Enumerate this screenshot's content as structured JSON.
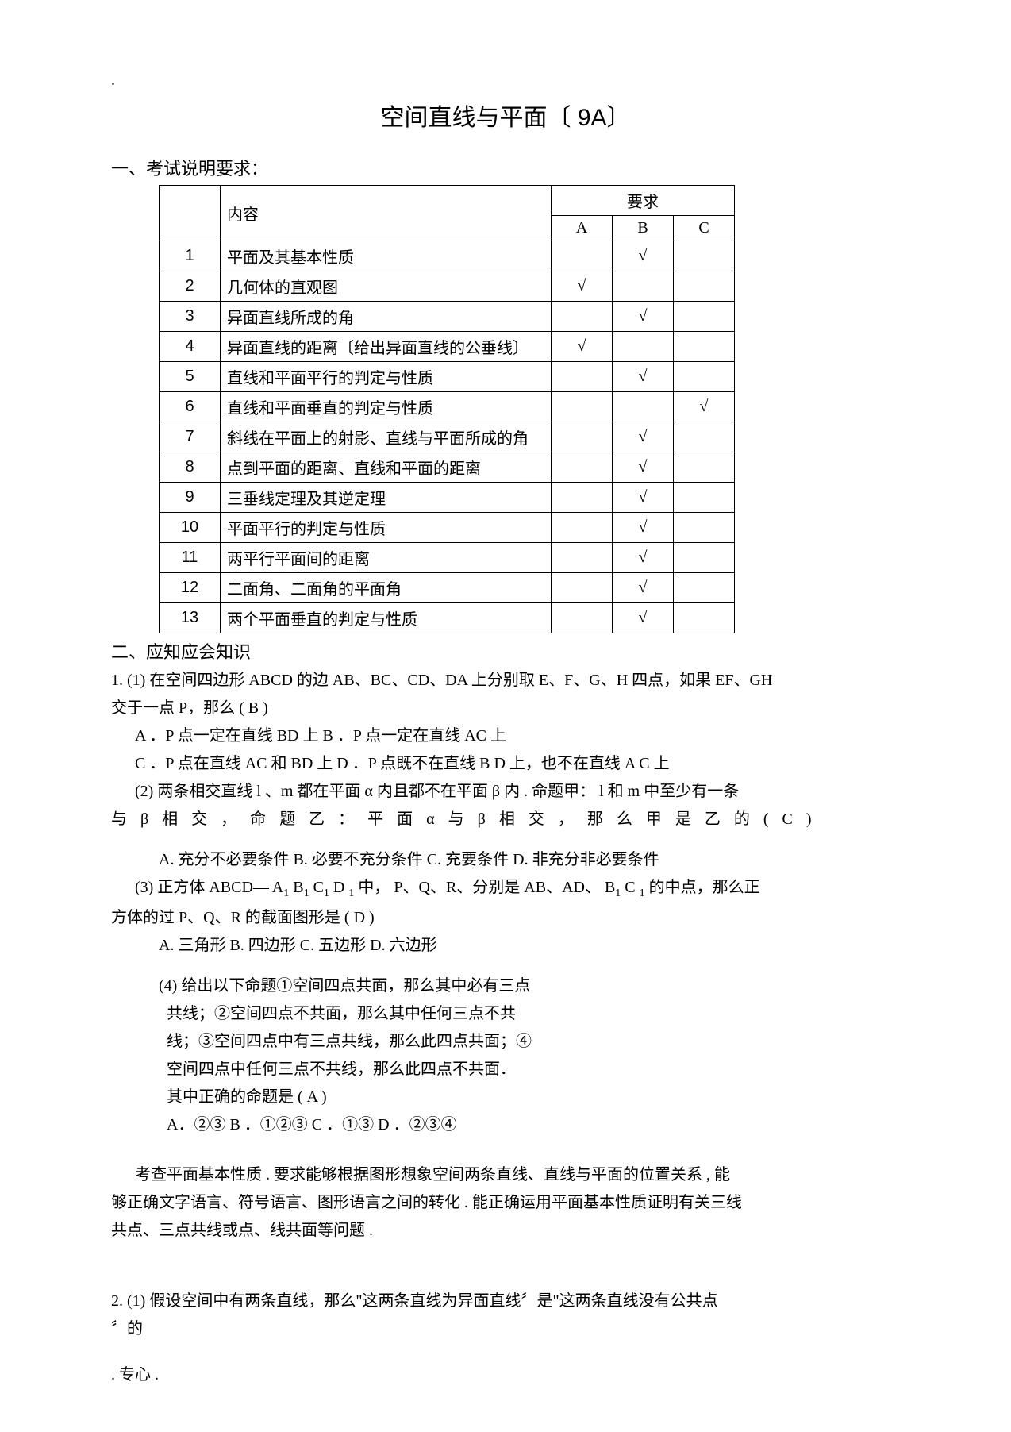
{
  "top_dot": ".",
  "title": "空间直线与平面〔  9A〕",
  "section1": "一、考试说明要求：",
  "table": {
    "header_content": "内容",
    "header_req": "要求",
    "header_A": "A",
    "header_B": "B",
    "header_C": "C",
    "rows": [
      {
        "n": "1",
        "c": "平面及其基本性质",
        "A": "",
        "B": "√",
        "C": ""
      },
      {
        "n": "2",
        "c": "几何体的直观图",
        "A": "√",
        "B": "",
        "C": ""
      },
      {
        "n": "3",
        "c": "异面直线所成的角",
        "A": "",
        "B": "√",
        "C": ""
      },
      {
        "n": "4",
        "c": "异面直线的距离〔给出异面直线的公垂线〕",
        "A": "√",
        "B": "",
        "C": ""
      },
      {
        "n": "5",
        "c": "直线和平面平行的判定与性质",
        "A": "",
        "B": "√",
        "C": ""
      },
      {
        "n": "6",
        "c": "直线和平面垂直的判定与性质",
        "A": "",
        "B": "",
        "C": "√"
      },
      {
        "n": "7",
        "c": "斜线在平面上的射影、直线与平面所成的角",
        "A": "",
        "B": "√",
        "C": ""
      },
      {
        "n": "8",
        "c": "点到平面的距离、直线和平面的距离",
        "A": "",
        "B": "√",
        "C": ""
      },
      {
        "n": "9",
        "c": "三垂线定理及其逆定理",
        "A": "",
        "B": "√",
        "C": ""
      },
      {
        "n": "10",
        "c": "平面平行的判定与性质",
        "A": "",
        "B": "√",
        "C": ""
      },
      {
        "n": "11",
        "c": "两平行平面间的距离",
        "A": "",
        "B": "√",
        "C": ""
      },
      {
        "n": "12",
        "c": "二面角、二面角的平面角",
        "A": "",
        "B": "√",
        "C": ""
      },
      {
        "n": "13",
        "c": "两个平面垂直的判定与性质",
        "A": "",
        "B": "√",
        "C": ""
      }
    ]
  },
  "section2": "二、应知应会知识",
  "q1_line1": "1. (1)  在空间四边形  ABCD 的边 AB、BC、CD、DA 上分别取  E、F、G、H 四点，如果  EF、GH",
  "q1_line2": "交于一点  P，那么                                                  ( B )",
  "q1_optA": "A    ．P 点一定在直线   BD 上       B       ．P 点一定在直线  AC 上",
  "q1_optC": "C    ．P 点在直线  AC 和 BD 上     D      ．P  点既不在直线   B D  上，也不在直线     A C 上",
  "q2_line1": "(2)  两条相交直线   l 、m 都在平面  α 内且都不在平面   β 内 . 命题甲： l 和 m 中至少有一条",
  "q2_line2": "与  β  相 交 ， 命 题 乙 ： 平 面  α  与  β  相 交 ， 那 么 甲 是 乙 的 ( C )",
  "q2_opts": "A. 充分不必要条件     B.   必要不充分条件     C.     充要条件      D.    非充分非必要条件",
  "q3_line1_a": "(3)    正方体  ABCD― A",
  "q3_line1_b": " B",
  "q3_line1_c": " C",
  "q3_line1_d": " D ",
  "q3_line1_e": " 中， P、Q、R、分别是  AB、AD、 B",
  "q3_line1_f": " C ",
  "q3_line1_g": " 的中点，那么正",
  "q3_line2": "方体的过  P、Q、R 的截面图形是                                        ( D )",
  "q3_opts": "A. 三角形       B.         四边形       C.       五边形        D.          六边形",
  "q4_l1": "(4)  给出以下命题①空间四点共面，那么其中必有三点",
  "q4_l2": "共线；②空间四点不共面，那么其中任何三点不共",
  "q4_l3": "线；③空间四点中有三点共线，那么此四点共面；④",
  "q4_l4": "空间四点中任何三点不共线，那么此四点不共面．",
  "q4_l5": "其中正确的命题是                                             ( A     )",
  "q4_opts": "A．②③     B   ．①②③     C   ．①③     D   ．②③④",
  "para_l1": "考查平面基本性质    . 要求能够根据图形想象空间两条直线、直线与平面的位置关系               , 能",
  "para_l2": "够正确文字语言、符号语言、图形语言之间的转化        . 能正确运用平面基本性质证明有关三线",
  "para_l3": "共点、三点共线或点、线共面等问题      .",
  "q21": "2. (1) 假设空间中有两条直线，那么\"这两条直线为异面直线〞是\"这两条直线没有公共点",
  "q21b": "〞的",
  "footer": ". 专心 ."
}
